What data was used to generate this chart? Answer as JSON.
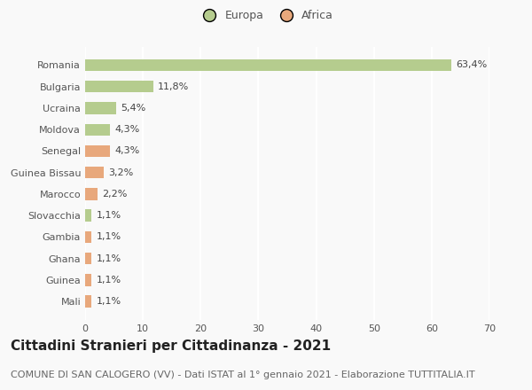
{
  "categories": [
    "Romania",
    "Bulgaria",
    "Ucraina",
    "Moldova",
    "Senegal",
    "Guinea Bissau",
    "Marocco",
    "Slovacchia",
    "Gambia",
    "Ghana",
    "Guinea",
    "Mali"
  ],
  "values": [
    63.4,
    11.8,
    5.4,
    4.3,
    4.3,
    3.2,
    2.2,
    1.1,
    1.1,
    1.1,
    1.1,
    1.1
  ],
  "labels": [
    "63,4%",
    "11,8%",
    "5,4%",
    "4,3%",
    "4,3%",
    "3,2%",
    "2,2%",
    "1,1%",
    "1,1%",
    "1,1%",
    "1,1%",
    "1,1%"
  ],
  "continents": [
    "Europa",
    "Europa",
    "Europa",
    "Europa",
    "Africa",
    "Africa",
    "Africa",
    "Europa",
    "Africa",
    "Africa",
    "Africa",
    "Africa"
  ],
  "color_europa": "#b5cc8e",
  "color_africa": "#e8a87c",
  "background_color": "#f9f9f9",
  "grid_color": "#ffffff",
  "title": "Cittadini Stranieri per Cittadinanza - 2021",
  "subtitle": "COMUNE DI SAN CALOGERO (VV) - Dati ISTAT al 1° gennaio 2021 - Elaborazione TUTTITALIA.IT",
  "legend_europa": "Europa",
  "legend_africa": "Africa",
  "xlim": [
    0,
    70
  ],
  "xticks": [
    0,
    10,
    20,
    30,
    40,
    50,
    60,
    70
  ],
  "title_fontsize": 11,
  "subtitle_fontsize": 8,
  "label_fontsize": 8,
  "tick_fontsize": 8,
  "legend_fontsize": 9
}
